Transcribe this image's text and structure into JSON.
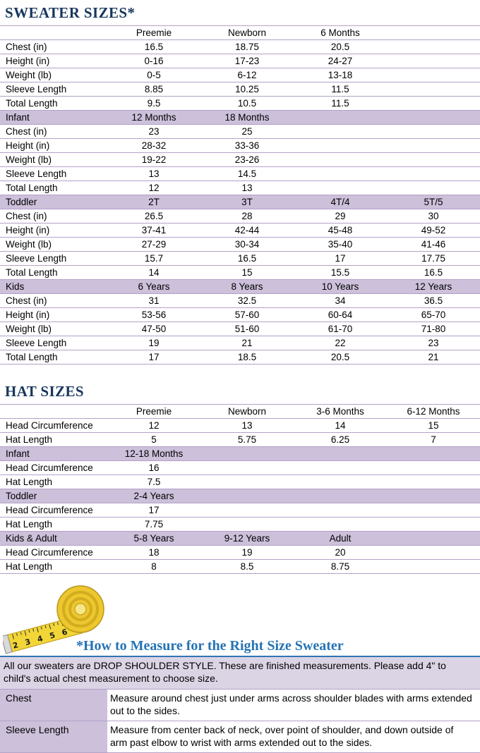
{
  "titles": {
    "sweater": "SWEATER SIZES*",
    "hat": "HAT SIZES",
    "measure": "*How to Measure for the Right Size Sweater"
  },
  "colors": {
    "title_navy": "#17365D",
    "measure_blue": "#2573B5",
    "section_lavender": "#CCC0DA",
    "note_lavender": "#DBD4E5",
    "grid_purple": "#B3A2C7",
    "tape_yellow": "#F2D537"
  },
  "sweater_table": {
    "rows": [
      {
        "type": "colheader",
        "cells": [
          "",
          "Preemie",
          "Newborn",
          "6 Months",
          ""
        ]
      },
      {
        "type": "data",
        "cells": [
          "Chest (in)",
          "16.5",
          "18.75",
          "20.5",
          ""
        ]
      },
      {
        "type": "data",
        "cells": [
          "Height (in)",
          "0-16",
          "17-23",
          "24-27",
          ""
        ]
      },
      {
        "type": "data",
        "cells": [
          "Weight (lb)",
          "0-5",
          "6-12",
          "13-18",
          ""
        ]
      },
      {
        "type": "data",
        "cells": [
          "Sleeve Length",
          "8.85",
          "10.25",
          "11.5",
          ""
        ]
      },
      {
        "type": "data",
        "cells": [
          "Total Length",
          "9.5",
          "10.5",
          "11.5",
          ""
        ]
      },
      {
        "type": "section",
        "cells": [
          "Infant",
          "12 Months",
          "18 Months",
          "",
          ""
        ]
      },
      {
        "type": "data",
        "cells": [
          "Chest (in)",
          "23",
          "25",
          "",
          ""
        ]
      },
      {
        "type": "data",
        "cells": [
          "Height (in)",
          "28-32",
          "33-36",
          "",
          ""
        ]
      },
      {
        "type": "data",
        "cells": [
          "Weight (lb)",
          "19-22",
          "23-26",
          "",
          ""
        ]
      },
      {
        "type": "data",
        "cells": [
          "Sleeve Length",
          "13",
          "14.5",
          "",
          ""
        ]
      },
      {
        "type": "data",
        "cells": [
          "Total Length",
          "12",
          "13",
          "",
          ""
        ]
      },
      {
        "type": "section",
        "cells": [
          "Toddler",
          "2T",
          "3T",
          "4T/4",
          "5T/5"
        ]
      },
      {
        "type": "data",
        "cells": [
          "Chest (in)",
          "26.5",
          "28",
          "29",
          "30"
        ]
      },
      {
        "type": "data",
        "cells": [
          "Height (in)",
          "37-41",
          "42-44",
          "45-48",
          "49-52"
        ]
      },
      {
        "type": "data",
        "cells": [
          "Weight (lb)",
          "27-29",
          "30-34",
          "35-40",
          "41-46"
        ]
      },
      {
        "type": "data",
        "cells": [
          "Sleeve Length",
          "15.7",
          "16.5",
          "17",
          "17.75"
        ]
      },
      {
        "type": "data",
        "cells": [
          "Total Length",
          "14",
          "15",
          "15.5",
          "16.5"
        ]
      },
      {
        "type": "section",
        "cells": [
          "Kids",
          "6 Years",
          "8 Years",
          "10 Years",
          "12 Years"
        ]
      },
      {
        "type": "data",
        "cells": [
          "Chest (in)",
          "31",
          "32.5",
          "34",
          "36.5"
        ]
      },
      {
        "type": "data",
        "cells": [
          "Height (in)",
          "53-56",
          "57-60",
          "60-64",
          "65-70"
        ]
      },
      {
        "type": "data",
        "cells": [
          "Weight (lb)",
          "47-50",
          "51-60",
          "61-70",
          "71-80"
        ]
      },
      {
        "type": "data",
        "cells": [
          "Sleeve Length",
          "19",
          "21",
          "22",
          "23"
        ]
      },
      {
        "type": "data",
        "cells": [
          "Total Length",
          "17",
          "18.5",
          "20.5",
          "21"
        ]
      }
    ]
  },
  "hat_table": {
    "rows": [
      {
        "type": "colheader",
        "cells": [
          "",
          "Preemie",
          "Newborn",
          "3-6 Months",
          "6-12 Months"
        ]
      },
      {
        "type": "data",
        "cells": [
          "Head Circumference",
          "12",
          "13",
          "14",
          "15"
        ]
      },
      {
        "type": "data",
        "cells": [
          "Hat Length",
          "5",
          "5.75",
          "6.25",
          "7"
        ]
      },
      {
        "type": "section",
        "cells": [
          "Infant",
          "12-18 Months",
          "",
          "",
          ""
        ]
      },
      {
        "type": "data",
        "cells": [
          "Head Circumference",
          "16",
          "",
          "",
          ""
        ]
      },
      {
        "type": "data",
        "cells": [
          "Hat Length",
          "7.5",
          "",
          "",
          ""
        ]
      },
      {
        "type": "section",
        "cells": [
          "Toddler",
          "2-4 Years",
          "",
          "",
          ""
        ]
      },
      {
        "type": "data",
        "cells": [
          "Head Circumference",
          "17",
          "",
          "",
          ""
        ]
      },
      {
        "type": "data",
        "cells": [
          "Hat Length",
          "7.75",
          "",
          "",
          ""
        ]
      },
      {
        "type": "section",
        "cells": [
          "Kids & Adult",
          "5-8 Years",
          "9-12 Years",
          "Adult",
          ""
        ]
      },
      {
        "type": "data",
        "cells": [
          "Head Circumference",
          "18",
          "19",
          "20",
          ""
        ]
      },
      {
        "type": "data",
        "cells": [
          "Hat Length",
          "8",
          "8.5",
          "8.75",
          ""
        ]
      }
    ]
  },
  "measure": {
    "note": "All our sweaters are DROP SHOULDER STYLE.  These are finished measurements.  Please add 4\" to child's actual chest measurement to choose size.",
    "rows": [
      {
        "label": "Chest",
        "text": "Measure around chest just under arms across shoulder blades with arms extended out to the sides."
      },
      {
        "label": "Sleeve Length",
        "text": "Measure from center back of neck, over point of shoulder, and down outside of arm past elbow to wrist with arms extended out to the sides."
      }
    ]
  },
  "icons": {
    "tape": "measuring-tape"
  }
}
